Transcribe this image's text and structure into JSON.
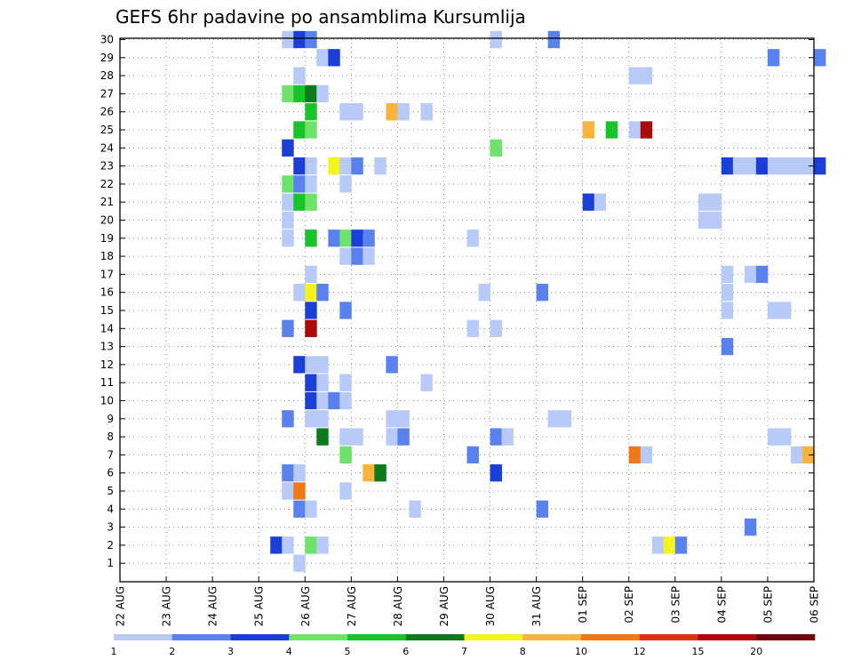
{
  "chart_data": {
    "type": "heatmap",
    "title": "GEFS 6hr padavine po ansamblima Kursumlija",
    "xlabel": "",
    "ylabel": "",
    "x_tick_labels": [
      "22 AUG",
      "23 AUG",
      "24 AUG",
      "25 AUG",
      "26 AUG",
      "27 AUG",
      "28 AUG",
      "29 AUG",
      "30 AUG",
      "31 AUG",
      "01 SEP",
      "02 SEP",
      "03 SEP",
      "04 SEP",
      "05 SEP",
      "06 SEP"
    ],
    "y_tick_labels": [
      "1",
      "2",
      "3",
      "4",
      "5",
      "6",
      "7",
      "8",
      "9",
      "10",
      "11",
      "12",
      "13",
      "14",
      "15",
      "16",
      "17",
      "18",
      "19",
      "20",
      "21",
      "22",
      "23",
      "24",
      "25",
      "26",
      "27",
      "28",
      "29",
      "30"
    ],
    "ylim": [
      1,
      30
    ],
    "grid": true,
    "time_step_hours": 6,
    "colorbar": {
      "levels": [
        "1",
        "2",
        "3",
        "4",
        "5",
        "6",
        "7",
        "8",
        "10",
        "12",
        "15",
        "20"
      ],
      "colors": [
        "#b8cbf8",
        "#5a82ee",
        "#1a3fd6",
        "#6ee36a",
        "#19c42a",
        "#0d7a1c",
        "#f5f51e",
        "#f8b43c",
        "#f07816",
        "#dc3214",
        "#aa0a0a",
        "#6e0808"
      ]
    },
    "cells": [
      {
        "member": 30,
        "date": "25 AUG",
        "hour": 12,
        "bin": 0
      },
      {
        "member": 30,
        "date": "25 AUG",
        "hour": 18,
        "bin": 2
      },
      {
        "member": 30,
        "date": "26 AUG",
        "hour": 0,
        "bin": 1
      },
      {
        "member": 30,
        "date": "30 AUG",
        "hour": 0,
        "bin": 0
      },
      {
        "member": 30,
        "date": "31 AUG",
        "hour": 6,
        "bin": 1
      },
      {
        "member": 29,
        "date": "26 AUG",
        "hour": 6,
        "bin": 0
      },
      {
        "member": 29,
        "date": "26 AUG",
        "hour": 12,
        "bin": 2
      },
      {
        "member": 29,
        "date": "05 SEP",
        "hour": 0,
        "bin": 1
      },
      {
        "member": 29,
        "date": "06 SEP",
        "hour": 0,
        "bin": 1
      },
      {
        "member": 28,
        "date": "25 AUG",
        "hour": 18,
        "bin": 0
      },
      {
        "member": 28,
        "date": "02 SEP",
        "hour": 0,
        "bin": 0
      },
      {
        "member": 28,
        "date": "02 SEP",
        "hour": 6,
        "bin": 0
      },
      {
        "member": 27,
        "date": "25 AUG",
        "hour": 12,
        "bin": 3
      },
      {
        "member": 27,
        "date": "25 AUG",
        "hour": 18,
        "bin": 4
      },
      {
        "member": 27,
        "date": "26 AUG",
        "hour": 0,
        "bin": 5
      },
      {
        "member": 27,
        "date": "26 AUG",
        "hour": 6,
        "bin": 0
      },
      {
        "member": 26,
        "date": "26 AUG",
        "hour": 0,
        "bin": 4
      },
      {
        "member": 26,
        "date": "26 AUG",
        "hour": 18,
        "bin": 0
      },
      {
        "member": 26,
        "date": "27 AUG",
        "hour": 0,
        "bin": 0
      },
      {
        "member": 26,
        "date": "27 AUG",
        "hour": 18,
        "bin": 7
      },
      {
        "member": 26,
        "date": "28 AUG",
        "hour": 0,
        "bin": 0
      },
      {
        "member": 26,
        "date": "28 AUG",
        "hour": 12,
        "bin": 0
      },
      {
        "member": 25,
        "date": "25 AUG",
        "hour": 18,
        "bin": 4
      },
      {
        "member": 25,
        "date": "26 AUG",
        "hour": 0,
        "bin": 3
      },
      {
        "member": 25,
        "date": "01 SEP",
        "hour": 0,
        "bin": 7
      },
      {
        "member": 25,
        "date": "01 SEP",
        "hour": 12,
        "bin": 4
      },
      {
        "member": 25,
        "date": "02 SEP",
        "hour": 0,
        "bin": 0
      },
      {
        "member": 25,
        "date": "02 SEP",
        "hour": 6,
        "bin": 10
      },
      {
        "member": 24,
        "date": "25 AUG",
        "hour": 12,
        "bin": 2
      },
      {
        "member": 24,
        "date": "30 AUG",
        "hour": 0,
        "bin": 3
      },
      {
        "member": 23,
        "date": "25 AUG",
        "hour": 18,
        "bin": 2
      },
      {
        "member": 23,
        "date": "26 AUG",
        "hour": 0,
        "bin": 0
      },
      {
        "member": 23,
        "date": "26 AUG",
        "hour": 12,
        "bin": 6
      },
      {
        "member": 23,
        "date": "26 AUG",
        "hour": 18,
        "bin": 0
      },
      {
        "member": 23,
        "date": "27 AUG",
        "hour": 0,
        "bin": 1
      },
      {
        "member": 23,
        "date": "27 AUG",
        "hour": 12,
        "bin": 0
      },
      {
        "member": 23,
        "date": "04 SEP",
        "hour": 0,
        "bin": 2
      },
      {
        "member": 23,
        "date": "04 SEP",
        "hour": 6,
        "bin": 0
      },
      {
        "member": 23,
        "date": "04 SEP",
        "hour": 12,
        "bin": 0
      },
      {
        "member": 23,
        "date": "04 SEP",
        "hour": 18,
        "bin": 2
      },
      {
        "member": 23,
        "date": "05 SEP",
        "hour": 0,
        "bin": 0
      },
      {
        "member": 23,
        "date": "05 SEP",
        "hour": 6,
        "bin": 0
      },
      {
        "member": 23,
        "date": "05 SEP",
        "hour": 12,
        "bin": 0
      },
      {
        "member": 23,
        "date": "05 SEP",
        "hour": 18,
        "bin": 0
      },
      {
        "member": 23,
        "date": "06 SEP",
        "hour": 0,
        "bin": 2
      },
      {
        "member": 22,
        "date": "25 AUG",
        "hour": 12,
        "bin": 3
      },
      {
        "member": 22,
        "date": "25 AUG",
        "hour": 18,
        "bin": 1
      },
      {
        "member": 22,
        "date": "26 AUG",
        "hour": 0,
        "bin": 0
      },
      {
        "member": 22,
        "date": "26 AUG",
        "hour": 18,
        "bin": 0
      },
      {
        "member": 21,
        "date": "25 AUG",
        "hour": 12,
        "bin": 0
      },
      {
        "member": 21,
        "date": "25 AUG",
        "hour": 18,
        "bin": 4
      },
      {
        "member": 21,
        "date": "26 AUG",
        "hour": 0,
        "bin": 3
      },
      {
        "member": 21,
        "date": "01 SEP",
        "hour": 0,
        "bin": 2
      },
      {
        "member": 21,
        "date": "01 SEP",
        "hour": 6,
        "bin": 0
      },
      {
        "member": 21,
        "date": "03 SEP",
        "hour": 12,
        "bin": 0
      },
      {
        "member": 21,
        "date": "03 SEP",
        "hour": 18,
        "bin": 0
      },
      {
        "member": 20,
        "date": "25 AUG",
        "hour": 12,
        "bin": 0
      },
      {
        "member": 20,
        "date": "03 SEP",
        "hour": 12,
        "bin": 0
      },
      {
        "member": 20,
        "date": "03 SEP",
        "hour": 18,
        "bin": 0
      },
      {
        "member": 19,
        "date": "25 AUG",
        "hour": 12,
        "bin": 0
      },
      {
        "member": 19,
        "date": "26 AUG",
        "hour": 0,
        "bin": 4
      },
      {
        "member": 19,
        "date": "26 AUG",
        "hour": 12,
        "bin": 1
      },
      {
        "member": 19,
        "date": "26 AUG",
        "hour": 18,
        "bin": 3
      },
      {
        "member": 19,
        "date": "27 AUG",
        "hour": 0,
        "bin": 2
      },
      {
        "member": 19,
        "date": "27 AUG",
        "hour": 6,
        "bin": 1
      },
      {
        "member": 19,
        "date": "29 AUG",
        "hour": 12,
        "bin": 0
      },
      {
        "member": 18,
        "date": "26 AUG",
        "hour": 18,
        "bin": 0
      },
      {
        "member": 18,
        "date": "27 AUG",
        "hour": 0,
        "bin": 1
      },
      {
        "member": 18,
        "date": "27 AUG",
        "hour": 6,
        "bin": 0
      },
      {
        "member": 17,
        "date": "26 AUG",
        "hour": 0,
        "bin": 0
      },
      {
        "member": 17,
        "date": "04 SEP",
        "hour": 0,
        "bin": 0
      },
      {
        "member": 17,
        "date": "04 SEP",
        "hour": 12,
        "bin": 0
      },
      {
        "member": 17,
        "date": "04 SEP",
        "hour": 18,
        "bin": 1
      },
      {
        "member": 16,
        "date": "25 AUG",
        "hour": 18,
        "bin": 0
      },
      {
        "member": 16,
        "date": "26 AUG",
        "hour": 0,
        "bin": 6
      },
      {
        "member": 16,
        "date": "26 AUG",
        "hour": 6,
        "bin": 1
      },
      {
        "member": 16,
        "date": "29 AUG",
        "hour": 18,
        "bin": 0
      },
      {
        "member": 16,
        "date": "31 AUG",
        "hour": 0,
        "bin": 1
      },
      {
        "member": 16,
        "date": "04 SEP",
        "hour": 0,
        "bin": 0
      },
      {
        "member": 15,
        "date": "26 AUG",
        "hour": 0,
        "bin": 2
      },
      {
        "member": 15,
        "date": "26 AUG",
        "hour": 18,
        "bin": 1
      },
      {
        "member": 15,
        "date": "04 SEP",
        "hour": 0,
        "bin": 0
      },
      {
        "member": 15,
        "date": "05 SEP",
        "hour": 0,
        "bin": 0
      },
      {
        "member": 15,
        "date": "05 SEP",
        "hour": 6,
        "bin": 0
      },
      {
        "member": 14,
        "date": "25 AUG",
        "hour": 12,
        "bin": 1
      },
      {
        "member": 14,
        "date": "26 AUG",
        "hour": 0,
        "bin": 10
      },
      {
        "member": 14,
        "date": "29 AUG",
        "hour": 12,
        "bin": 0
      },
      {
        "member": 14,
        "date": "30 AUG",
        "hour": 0,
        "bin": 0
      },
      {
        "member": 13,
        "date": "04 SEP",
        "hour": 0,
        "bin": 1
      },
      {
        "member": 12,
        "date": "25 AUG",
        "hour": 18,
        "bin": 2
      },
      {
        "member": 12,
        "date": "26 AUG",
        "hour": 0,
        "bin": 0
      },
      {
        "member": 12,
        "date": "26 AUG",
        "hour": 6,
        "bin": 0
      },
      {
        "member": 12,
        "date": "27 AUG",
        "hour": 18,
        "bin": 1
      },
      {
        "member": 11,
        "date": "26 AUG",
        "hour": 0,
        "bin": 2
      },
      {
        "member": 11,
        "date": "26 AUG",
        "hour": 6,
        "bin": 0
      },
      {
        "member": 11,
        "date": "26 AUG",
        "hour": 18,
        "bin": 0
      },
      {
        "member": 11,
        "date": "28 AUG",
        "hour": 12,
        "bin": 0
      },
      {
        "member": 10,
        "date": "26 AUG",
        "hour": 0,
        "bin": 2
      },
      {
        "member": 10,
        "date": "26 AUG",
        "hour": 6,
        "bin": 0
      },
      {
        "member": 10,
        "date": "26 AUG",
        "hour": 12,
        "bin": 1
      },
      {
        "member": 10,
        "date": "26 AUG",
        "hour": 18,
        "bin": 0
      },
      {
        "member": 9,
        "date": "25 AUG",
        "hour": 12,
        "bin": 1
      },
      {
        "member": 9,
        "date": "26 AUG",
        "hour": 0,
        "bin": 0
      },
      {
        "member": 9,
        "date": "26 AUG",
        "hour": 6,
        "bin": 0
      },
      {
        "member": 9,
        "date": "27 AUG",
        "hour": 18,
        "bin": 0
      },
      {
        "member": 9,
        "date": "28 AUG",
        "hour": 0,
        "bin": 0
      },
      {
        "member": 9,
        "date": "31 AUG",
        "hour": 6,
        "bin": 0
      },
      {
        "member": 9,
        "date": "31 AUG",
        "hour": 12,
        "bin": 0
      },
      {
        "member": 8,
        "date": "26 AUG",
        "hour": 6,
        "bin": 5
      },
      {
        "member": 8,
        "date": "26 AUG",
        "hour": 18,
        "bin": 0
      },
      {
        "member": 8,
        "date": "27 AUG",
        "hour": 0,
        "bin": 0
      },
      {
        "member": 8,
        "date": "27 AUG",
        "hour": 18,
        "bin": 0
      },
      {
        "member": 8,
        "date": "28 AUG",
        "hour": 0,
        "bin": 1
      },
      {
        "member": 8,
        "date": "30 AUG",
        "hour": 0,
        "bin": 1
      },
      {
        "member": 8,
        "date": "30 AUG",
        "hour": 6,
        "bin": 0
      },
      {
        "member": 8,
        "date": "05 SEP",
        "hour": 0,
        "bin": 0
      },
      {
        "member": 8,
        "date": "05 SEP",
        "hour": 6,
        "bin": 0
      },
      {
        "member": 7,
        "date": "26 AUG",
        "hour": 18,
        "bin": 3
      },
      {
        "member": 7,
        "date": "29 AUG",
        "hour": 12,
        "bin": 1
      },
      {
        "member": 7,
        "date": "02 SEP",
        "hour": 0,
        "bin": 8
      },
      {
        "member": 7,
        "date": "02 SEP",
        "hour": 6,
        "bin": 0
      },
      {
        "member": 7,
        "date": "05 SEP",
        "hour": 12,
        "bin": 0
      },
      {
        "member": 7,
        "date": "05 SEP",
        "hour": 18,
        "bin": 7
      },
      {
        "member": 6,
        "date": "25 AUG",
        "hour": 12,
        "bin": 1
      },
      {
        "member": 6,
        "date": "25 AUG",
        "hour": 18,
        "bin": 0
      },
      {
        "member": 6,
        "date": "27 AUG",
        "hour": 6,
        "bin": 7
      },
      {
        "member": 6,
        "date": "27 AUG",
        "hour": 12,
        "bin": 5
      },
      {
        "member": 6,
        "date": "30 AUG",
        "hour": 0,
        "bin": 2
      },
      {
        "member": 5,
        "date": "25 AUG",
        "hour": 12,
        "bin": 0
      },
      {
        "member": 5,
        "date": "25 AUG",
        "hour": 18,
        "bin": 8
      },
      {
        "member": 5,
        "date": "26 AUG",
        "hour": 18,
        "bin": 0
      },
      {
        "member": 4,
        "date": "25 AUG",
        "hour": 18,
        "bin": 1
      },
      {
        "member": 4,
        "date": "26 AUG",
        "hour": 0,
        "bin": 0
      },
      {
        "member": 4,
        "date": "28 AUG",
        "hour": 6,
        "bin": 0
      },
      {
        "member": 4,
        "date": "31 AUG",
        "hour": 0,
        "bin": 1
      },
      {
        "member": 3,
        "date": "04 SEP",
        "hour": 12,
        "bin": 1
      },
      {
        "member": 2,
        "date": "25 AUG",
        "hour": 6,
        "bin": 2
      },
      {
        "member": 2,
        "date": "25 AUG",
        "hour": 12,
        "bin": 0
      },
      {
        "member": 2,
        "date": "26 AUG",
        "hour": 0,
        "bin": 3
      },
      {
        "member": 2,
        "date": "26 AUG",
        "hour": 6,
        "bin": 0
      },
      {
        "member": 2,
        "date": "02 SEP",
        "hour": 12,
        "bin": 0
      },
      {
        "member": 2,
        "date": "02 SEP",
        "hour": 18,
        "bin": 6
      },
      {
        "member": 2,
        "date": "03 SEP",
        "hour": 0,
        "bin": 1
      },
      {
        "member": 1,
        "date": "25 AUG",
        "hour": 18,
        "bin": 0
      }
    ]
  }
}
